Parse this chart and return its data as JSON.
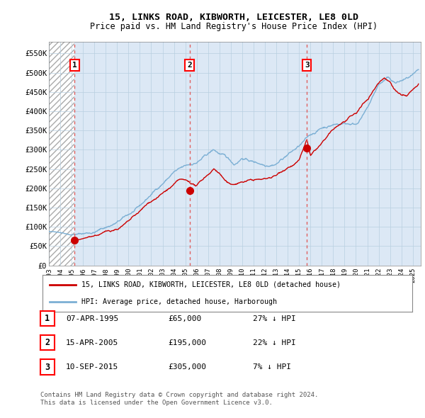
{
  "title": "15, LINKS ROAD, KIBWORTH, LEICESTER, LE8 0LD",
  "subtitle": "Price paid vs. HM Land Registry's House Price Index (HPI)",
  "transactions": [
    {
      "num": 1,
      "date_str": "07-APR-1995",
      "year": 1995.27,
      "price": 65000,
      "hpi_pct": "27% ↓ HPI"
    },
    {
      "num": 2,
      "date_str": "15-APR-2005",
      "year": 2005.37,
      "price": 195000,
      "hpi_pct": "22% ↓ HPI"
    },
    {
      "num": 3,
      "date_str": "10-SEP-2015",
      "year": 2015.69,
      "price": 305000,
      "hpi_pct": "7% ↓ HPI"
    }
  ],
  "hpi_color": "#7bafd4",
  "price_color": "#cc0000",
  "dashed_line_color": "#e06060",
  "marker_color": "#cc0000",
  "bg_color": "#dce8f5",
  "grid_color": "#b8cfe0",
  "ylim": [
    0,
    580000
  ],
  "yticks": [
    0,
    50000,
    100000,
    150000,
    200000,
    250000,
    300000,
    350000,
    400000,
    450000,
    500000,
    550000
  ],
  "ytick_labels": [
    "£0",
    "£50K",
    "£100K",
    "£150K",
    "£200K",
    "£250K",
    "£300K",
    "£350K",
    "£400K",
    "£450K",
    "£500K",
    "£550K"
  ],
  "xlim_start": 1993.0,
  "xlim_end": 2025.7,
  "xtick_years": [
    1993,
    1994,
    1995,
    1996,
    1997,
    1998,
    1999,
    2000,
    2001,
    2002,
    2003,
    2004,
    2005,
    2006,
    2007,
    2008,
    2009,
    2010,
    2011,
    2012,
    2013,
    2014,
    2015,
    2016,
    2017,
    2018,
    2019,
    2020,
    2021,
    2022,
    2023,
    2024,
    2025
  ],
  "legend_label_red": "15, LINKS ROAD, KIBWORTH, LEICESTER, LE8 0LD (detached house)",
  "legend_label_blue": "HPI: Average price, detached house, Harborough",
  "footer": "Contains HM Land Registry data © Crown copyright and database right 2024.\nThis data is licensed under the Open Government Licence v3.0."
}
